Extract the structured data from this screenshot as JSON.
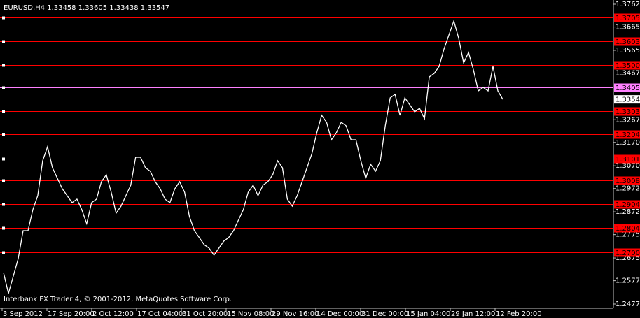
{
  "chart_data": {
    "type": "line",
    "title": "EURUSD,H4  1.33458 1.33605 1.33438 1.33547",
    "footer": "Interbank FX Trader 4, © 2001-2012, MetaQuotes Software Corp.",
    "color": "#ffffff",
    "level_color": "#ff0000",
    "x_labels": [
      "3 Sep 2012",
      "17 Sep 20:00",
      "2 Oct 12:00",
      "17 Oct 04:00",
      "31 Oct 20:00",
      "15 Nov 08:00",
      "29 Nov 16:00",
      "14 Dec 00:00",
      "31 Dec 00:00",
      "15 Jan 04:00",
      "29 Jan 12:00",
      "12 Feb 20:00"
    ],
    "values": [
      1.26124,
      1.25226,
      1.25974,
      1.26723,
      1.27921,
      1.27921,
      1.2882,
      1.29419,
      1.30916,
      1.31515,
      1.30617,
      1.30167,
      1.29718,
      1.29419,
      1.29119,
      1.29269,
      1.2882,
      1.28221,
      1.29119,
      1.29269,
      1.30018,
      1.30317,
      1.29568,
      1.2867,
      1.28969,
      1.29419,
      1.29868,
      1.31066,
      1.31066,
      1.30617,
      1.30467,
      1.30018,
      1.29718,
      1.29269,
      1.29119,
      1.29718,
      1.30018,
      1.29568,
      1.2852,
      1.27921,
      1.27622,
      1.27322,
      1.27172,
      1.26873,
      1.27172,
      1.27472,
      1.27622,
      1.27921,
      1.2837,
      1.2882,
      1.29568,
      1.29868,
      1.29419,
      1.29868,
      1.30018,
      1.30317,
      1.30916,
      1.30617,
      1.29269,
      1.28969,
      1.29419,
      1.30018,
      1.30617,
      1.31216,
      1.32114,
      1.32863,
      1.32563,
      1.31815,
      1.32114,
      1.32563,
      1.32414,
      1.31815,
      1.31815,
      1.30916,
      1.30167,
      1.30766,
      1.30467,
      1.30916,
      1.32414,
      1.33612,
      1.33761,
      1.32863,
      1.33612,
      1.33312,
      1.33013,
      1.33162,
      1.32713,
      1.3451,
      1.3466,
      1.34959,
      1.35708,
      1.36307,
      1.36906,
      1.36157,
      1.35109,
      1.35558,
      1.3481,
      1.33911,
      1.34061,
      1.33911,
      1.34959,
      1.33911,
      1.33547
    ],
    "ylim": [
      1.24625,
      1.37805
    ],
    "yticks": [
      1.37625,
      {
        "value": 1.3665,
        "label": "1.36650"
      },
      {
        "value": 1.3565,
        "label": "1.35650"
      },
      1.34675,
      1.32675,
      {
        "value": 1.317,
        "label": "1.31700"
      },
      {
        "value": 1.307,
        "label": "1.30700"
      },
      1.29725,
      1.28725,
      {
        "value": 1.2775,
        "label": "1.27750"
      },
      {
        "value": 1.2675,
        "label": "1.26750"
      },
      1.25775,
      1.24775
    ],
    "levels": [
      {
        "value": 1.3705,
        "color": "#ff0000"
      },
      {
        "value": 1.3603,
        "color": "#ff0000"
      },
      {
        "value": 1.35006,
        "color": "#ff0000"
      },
      {
        "value": 1.34053,
        "color": "#ff80ff"
      },
      {
        "value": 1.33037,
        "color": "#ff0000"
      },
      {
        "value": 1.3204,
        "color": "#ff0000"
      },
      {
        "value": 1.31012,
        "color": "#ff0000"
      },
      {
        "value": 1.30087,
        "color": "#ff0000"
      },
      {
        "value": 1.29046,
        "color": "#ff0000"
      },
      {
        "value": 1.28046,
        "color": "#ff0000"
      },
      {
        "value": 1.27003,
        "color": "#ff0000"
      }
    ],
    "current_price": 1.33547
  }
}
